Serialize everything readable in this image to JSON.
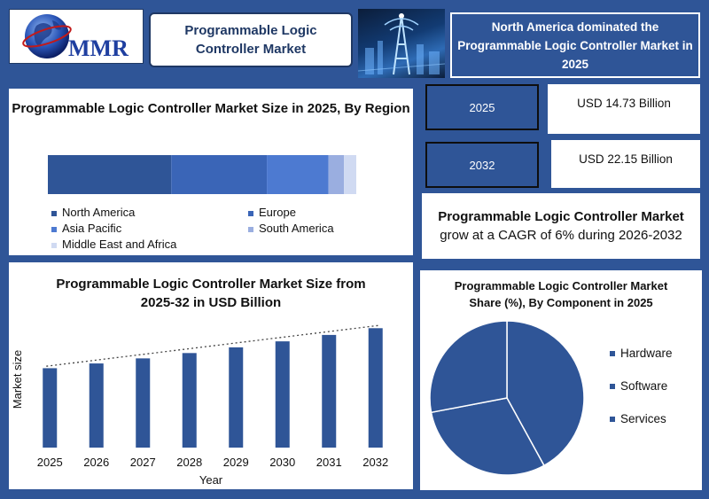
{
  "logo": {
    "text": "MMR"
  },
  "header": {
    "title": "Programmable Logic Controller Market",
    "highlight": "North America dominated the Programmable Logic Controller Market in 2025"
  },
  "stats": {
    "items": [
      {
        "year": "2025",
        "value": "USD 14.73 Billion"
      },
      {
        "year": "2032",
        "value": "USD 22.15 Billion"
      }
    ],
    "cagr_bold": "Programmable Logic Controller Market",
    "cagr_rest": " grow at a CAGR of 6% during 2026-2032"
  },
  "chart_data": [
    {
      "type": "bar",
      "subtype": "stacked-horizontal-percent",
      "title": "Programmable Logic Controller Market Size in 2025, By Region",
      "series": [
        {
          "name": "North America",
          "value": 40,
          "color": "#2f5597"
        },
        {
          "name": "Europe",
          "value": 31,
          "color": "#3a65b7"
        },
        {
          "name": "Asia Pacific",
          "value": 20,
          "color": "#4d7ad1"
        },
        {
          "name": "South America",
          "value": 5,
          "color": "#9aaee0"
        },
        {
          "name": "Middle East and Africa",
          "value": 4,
          "color": "#d0daf2"
        }
      ],
      "legend_position": "bottom"
    },
    {
      "type": "bar",
      "title": "Programmable Logic Controller Market Size from 2025-32 in USD Billion",
      "xlabel": "Year",
      "ylabel": "Market size",
      "categories": [
        "2025",
        "2026",
        "2027",
        "2028",
        "2029",
        "2030",
        "2031",
        "2032"
      ],
      "values": [
        14.73,
        15.61,
        16.55,
        17.54,
        18.6,
        19.71,
        20.9,
        22.15
      ],
      "ylim": [
        0,
        24.5
      ],
      "color": "#2f5597",
      "trendline": true
    },
    {
      "type": "pie",
      "title": "Programmable Logic Controller Market Share (%), By Component in 2025",
      "categories": [
        "Hardware",
        "Software",
        "Services"
      ],
      "values": [
        42,
        30,
        28
      ],
      "colors": [
        "#2f5597",
        "#2f5597",
        "#2f5597"
      ],
      "legend_position": "right"
    }
  ]
}
